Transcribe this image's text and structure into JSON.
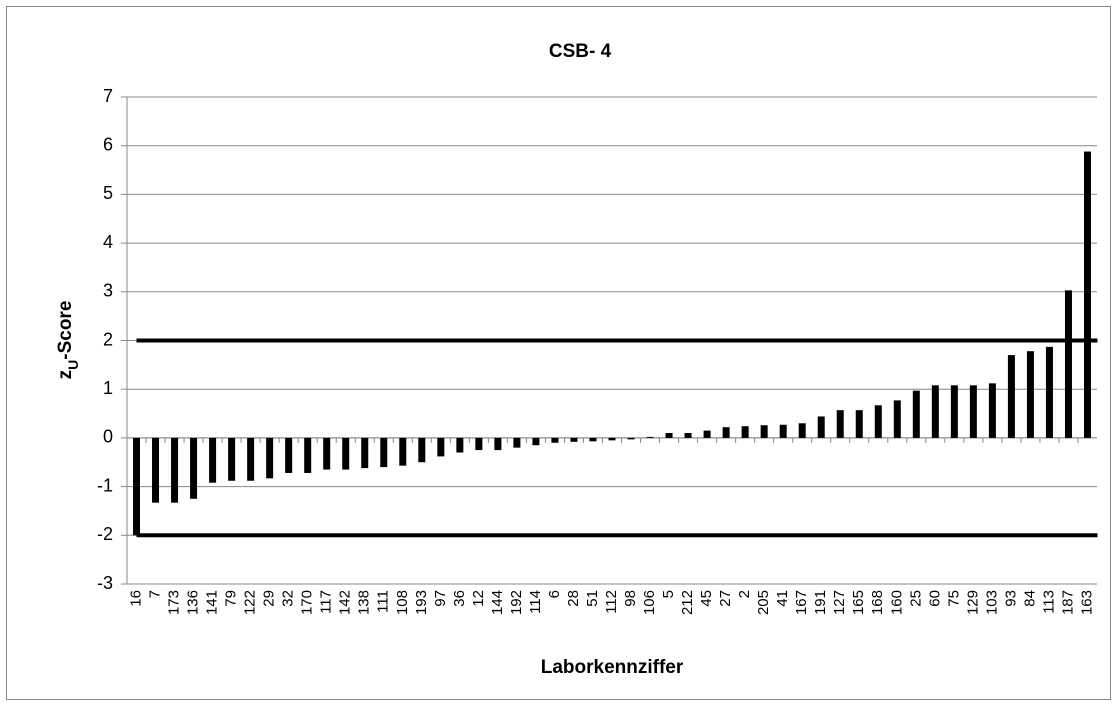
{
  "chart_data": {
    "type": "bar",
    "title": "CSB- 4",
    "x_label": "Laborkennziffer",
    "y_label": {
      "base": "z",
      "sub": "U",
      "rest": "-Score"
    },
    "categories": [
      "16",
      "7",
      "173",
      "136",
      "141",
      "79",
      "122",
      "29",
      "32",
      "170",
      "117",
      "142",
      "138",
      "111",
      "108",
      "193",
      "97",
      "36",
      "12",
      "144",
      "192",
      "114",
      "6",
      "28",
      "51",
      "112",
      "98",
      "106",
      "5",
      "212",
      "45",
      "27",
      "2",
      "205",
      "41",
      "167",
      "191",
      "127",
      "165",
      "168",
      "160",
      "25",
      "60",
      "75",
      "129",
      "103",
      "93",
      "84",
      "113",
      "187",
      "163"
    ],
    "values": [
      -2.0,
      -1.33,
      -1.33,
      -1.25,
      -0.92,
      -0.88,
      -0.88,
      -0.83,
      -0.72,
      -0.72,
      -0.65,
      -0.65,
      -0.62,
      -0.6,
      -0.57,
      -0.5,
      -0.38,
      -0.3,
      -0.25,
      -0.25,
      -0.2,
      -0.15,
      -0.1,
      -0.08,
      -0.07,
      -0.05,
      -0.03,
      0.02,
      0.1,
      0.1,
      0.15,
      0.22,
      0.24,
      0.26,
      0.27,
      0.3,
      0.44,
      0.57,
      0.57,
      0.67,
      0.77,
      0.97,
      1.08,
      1.08,
      1.08,
      1.12,
      1.7,
      1.78,
      1.87,
      3.03,
      5.88
    ],
    "color": "#000000",
    "ylim": [
      -3,
      7
    ],
    "yticks": [
      -3,
      -2,
      -1,
      0,
      1,
      2,
      3,
      4,
      5,
      6,
      7
    ],
    "grid": true,
    "reference_lines": [
      2,
      -2
    ]
  }
}
